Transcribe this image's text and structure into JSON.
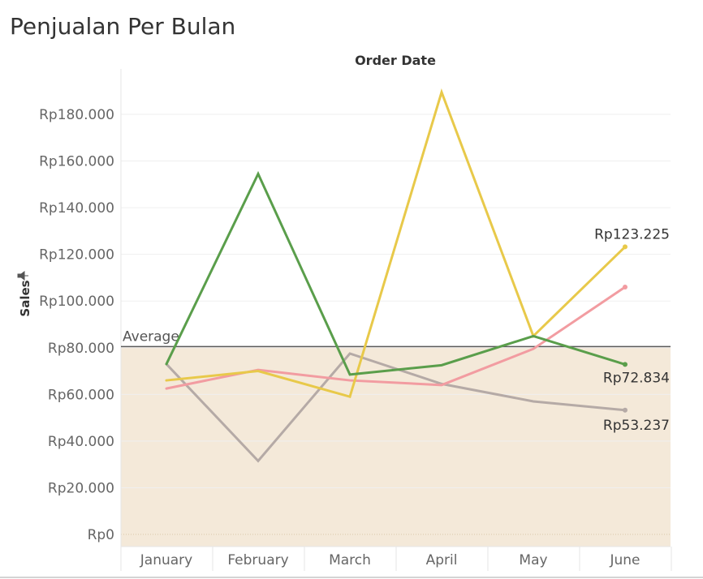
{
  "page": {
    "title": "Penjualan Per Bulan"
  },
  "chart_data": {
    "type": "line",
    "title": "Penjualan Per Bulan",
    "column_header": "Order Date",
    "xlabel": "",
    "ylabel": "Sales",
    "ylim": [
      0,
      200000
    ],
    "y_ticks": [
      "Rp0",
      "Rp20.000",
      "Rp40.000",
      "Rp60.000",
      "Rp80.000",
      "Rp100.000",
      "Rp120.000",
      "Rp140.000",
      "Rp160.000",
      "Rp180.000"
    ],
    "y_tick_values": [
      0,
      20000,
      40000,
      60000,
      80000,
      100000,
      120000,
      140000,
      160000,
      180000
    ],
    "categories": [
      "January",
      "February",
      "March",
      "April",
      "May",
      "June"
    ],
    "grid": true,
    "reference_line": {
      "label": "Average",
      "value": 80500,
      "band_fill": "#f4e9d9",
      "line_color": "#5a5a5a"
    },
    "series": [
      {
        "color": "#5a9e4b",
        "values": [
          73000,
          154500,
          68500,
          72500,
          85000,
          72834
        ],
        "end_label": "Rp72.834"
      },
      {
        "color": "#e8c94a",
        "values": [
          66000,
          70000,
          59000,
          189500,
          85000,
          123225
        ],
        "end_label": "Rp123.225"
      },
      {
        "color": "#f29ca1",
        "values": [
          62500,
          70500,
          66000,
          64000,
          79500,
          106000
        ],
        "end_label": ""
      },
      {
        "color": "#b5aaa6",
        "values": [
          73000,
          31500,
          77500,
          64500,
          57000,
          53237
        ],
        "end_label": "Rp53.237"
      }
    ]
  }
}
